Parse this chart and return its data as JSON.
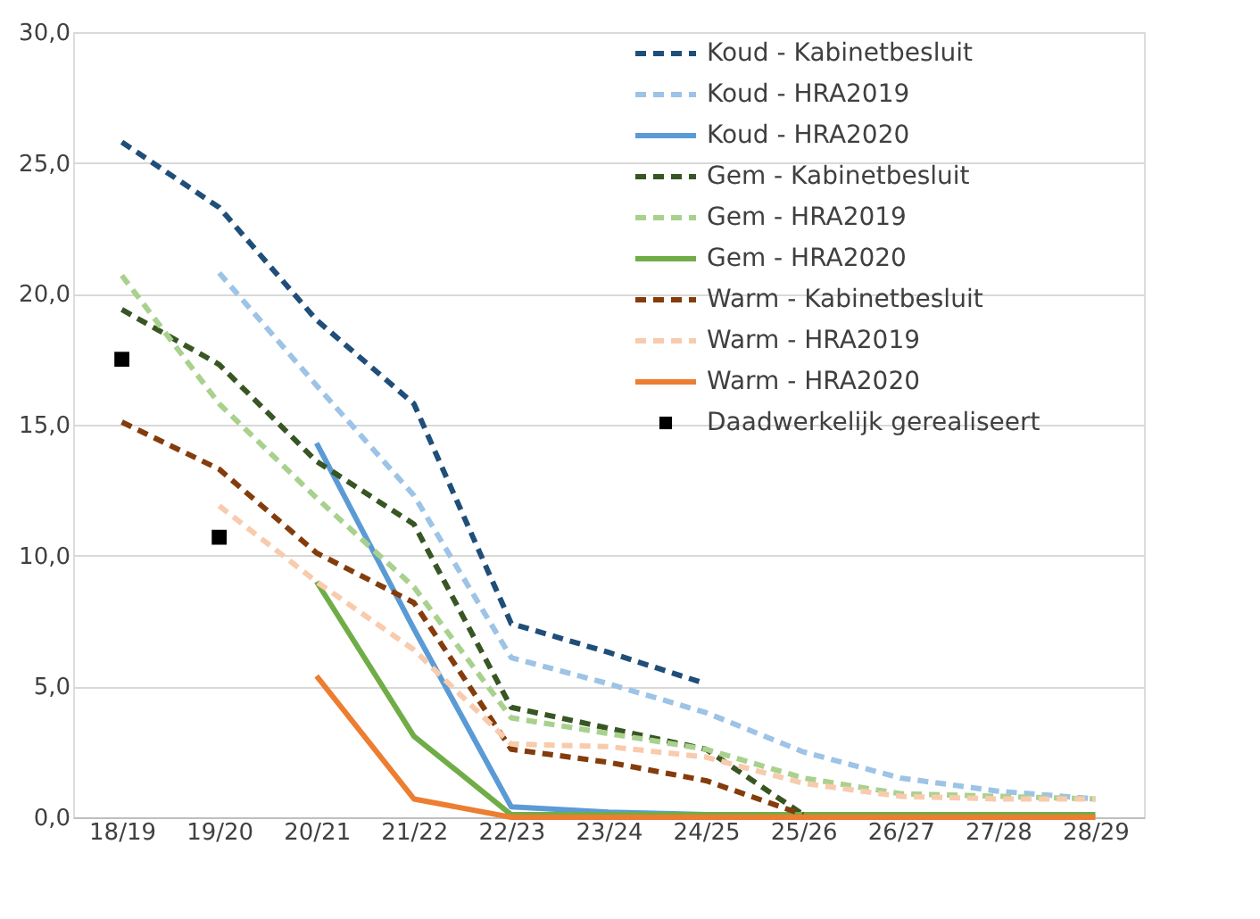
{
  "chart_data": {
    "type": "line",
    "categories": [
      "18/19",
      "19/20",
      "20/21",
      "21/22",
      "22/23",
      "23/24",
      "24/25",
      "25/26",
      "26/27",
      "27/28",
      "28/29"
    ],
    "ylim": [
      0,
      30
    ],
    "yticks": [
      {
        "value": 0,
        "label": "0,0"
      },
      {
        "value": 5,
        "label": "5,0"
      },
      {
        "value": 10,
        "label": "10,0"
      },
      {
        "value": 15,
        "label": "15,0"
      },
      {
        "value": 20,
        "label": "20,0"
      },
      {
        "value": 25,
        "label": "25,0"
      },
      {
        "value": 30,
        "label": "30,0"
      }
    ],
    "grid": "y",
    "legend": "top right",
    "marker": "none",
    "series": [
      {
        "name": "Koud - Kabinetbesluit",
        "color": "#1f4e79",
        "line_style": "dashed",
        "values": [
          25.8,
          23.3,
          19.0,
          15.8,
          7.4,
          6.3,
          5.1,
          null,
          null,
          null,
          null
        ]
      },
      {
        "name": "Koud - HRA2019",
        "color": "#9dc3e6",
        "line_style": "dashed",
        "values": [
          null,
          20.8,
          16.5,
          12.3,
          6.1,
          5.1,
          4.0,
          2.5,
          1.5,
          1.0,
          0.7
        ]
      },
      {
        "name": "Koud - HRA2020",
        "color": "#5b9bd5",
        "line_style": "solid",
        "values": [
          null,
          null,
          14.3,
          7.2,
          0.4,
          0.2,
          0.1,
          null,
          null,
          null,
          null
        ]
      },
      {
        "name": "Gem - Kabinetbesluit",
        "color": "#375623",
        "line_style": "dashed",
        "values": [
          19.4,
          17.3,
          13.6,
          11.2,
          4.2,
          3.4,
          2.6,
          0.1,
          null,
          null,
          null
        ]
      },
      {
        "name": "Gem - HRA2019",
        "color": "#a9d18e",
        "line_style": "dashed",
        "values": [
          20.7,
          15.8,
          12.2,
          8.8,
          3.8,
          3.2,
          2.6,
          1.5,
          0.9,
          0.8,
          0.7
        ]
      },
      {
        "name": "Gem - HRA2020",
        "color": "#70ad47",
        "line_style": "solid",
        "values": [
          null,
          null,
          9.0,
          3.1,
          0.1,
          0.1,
          0.1,
          0.1,
          0.1,
          0.1,
          0.1
        ]
      },
      {
        "name": "Warm - Kabinetbesluit",
        "color": "#843c0c",
        "line_style": "dashed",
        "values": [
          15.1,
          13.3,
          10.1,
          8.2,
          2.6,
          2.1,
          1.4,
          0.1,
          null,
          null,
          null
        ]
      },
      {
        "name": "Warm - HRA2019",
        "color": "#f8cbad",
        "line_style": "dashed",
        "values": [
          null,
          11.9,
          9.0,
          6.4,
          2.8,
          2.7,
          2.3,
          1.3,
          0.8,
          0.7,
          0.7
        ]
      },
      {
        "name": "Warm - HRA2020",
        "color": "#ed7d31",
        "line_style": "solid",
        "values": [
          null,
          null,
          5.4,
          0.7,
          0.0,
          0.0,
          0.0,
          0.0,
          0.0,
          0.0,
          0.0
        ]
      },
      {
        "name": "Daadwerkelijk gerealiseert",
        "type": "scatter",
        "marker": "square",
        "color": "#000000",
        "values": [
          17.5,
          10.7,
          null,
          null,
          null,
          null,
          null,
          null,
          null,
          null,
          null
        ]
      }
    ]
  }
}
